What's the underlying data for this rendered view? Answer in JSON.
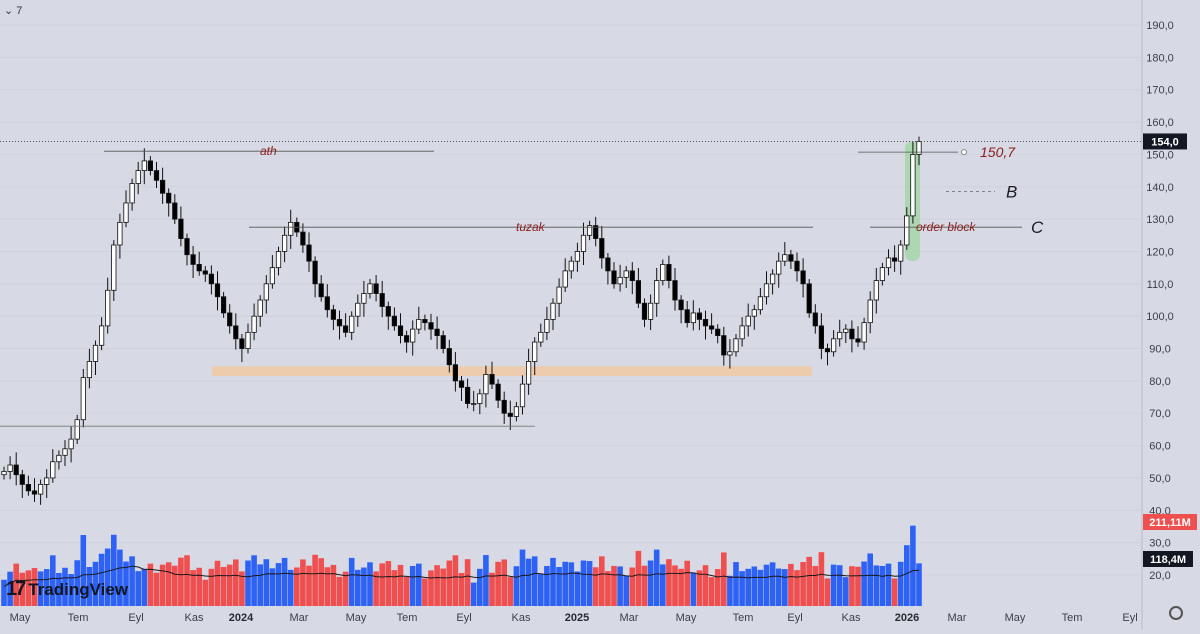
{
  "header": {
    "symbol_hint": "7"
  },
  "branding": {
    "logo_text": "TradingView"
  },
  "colors": {
    "up": "#ffffff",
    "down": "#000000",
    "vol_up": "#2e62f5",
    "vol_down": "#ef4f4f",
    "vol_ma": "#1a1a1a",
    "zone": "#f3c79a",
    "ob_box": "#8fd68f",
    "annotation": "#8b1d1d"
  },
  "chart_data": {
    "type": "candlestick",
    "title": "",
    "price_axis": {
      "ticks": [
        "20,0",
        "30,0",
        "40,0",
        "50,0",
        "60,0",
        "70,0",
        "80,0",
        "90,0",
        "100,0",
        "110,0",
        "120,0",
        "130,0",
        "140,0",
        "150,0",
        "160,0",
        "170,0",
        "180,0",
        "190,0"
      ],
      "range": [
        15,
        195
      ]
    },
    "time_axis": {
      "labels": [
        "May",
        "Tem",
        "Eyl",
        "Kas",
        "2024",
        "Mar",
        "May",
        "Tem",
        "Eyl",
        "Kas",
        "2025",
        "Mar",
        "May",
        "Tem",
        "Eyl",
        "Kas",
        "2026",
        "Mar",
        "May",
        "Tem",
        "Eyl"
      ]
    },
    "last_price": {
      "label": "154,0",
      "value": 154.0
    },
    "volume_labels": {
      "last_volume": "211,11M",
      "volume_ma": "118,4M"
    },
    "annotations": {
      "ath": {
        "text": "ath",
        "level": 151
      },
      "tuzak": {
        "text": "tuzak",
        "level": 127.5
      },
      "target": {
        "text": "150,7",
        "level": 150.7
      },
      "b": {
        "text": "B",
        "level": 138.5
      },
      "c": {
        "text": "C",
        "level": 127.5
      },
      "order_block": {
        "text": "order block",
        "level": 127.5
      },
      "support_zone": {
        "from": 81.5,
        "to": 84.5
      },
      "lower_line": {
        "level": 66
      }
    },
    "candles_close": [
      52,
      54,
      51,
      48,
      46,
      45,
      48,
      50,
      55,
      57,
      59,
      62,
      68,
      81,
      86,
      91,
      97,
      108,
      122,
      129,
      135,
      141,
      145,
      148,
      145,
      142,
      138,
      135,
      130,
      124,
      119,
      116,
      114,
      113,
      110,
      106,
      101,
      97,
      93,
      90,
      95,
      100,
      105,
      110,
      115,
      120,
      125,
      129,
      126,
      122,
      117,
      110,
      106,
      102,
      99,
      97,
      95,
      100,
      104,
      107,
      110,
      107,
      103,
      100,
      97,
      94,
      92,
      96,
      99,
      98,
      96,
      94,
      90,
      85,
      80,
      78,
      73,
      73,
      76,
      82,
      79,
      74,
      70,
      69,
      72,
      79,
      86,
      92,
      95,
      99,
      104,
      109,
      114,
      117,
      120,
      125,
      128,
      124,
      118,
      114,
      110,
      112,
      114,
      111,
      104,
      99,
      104,
      111,
      116,
      111,
      105,
      102,
      98,
      101,
      99,
      97,
      96,
      94,
      88,
      89,
      93,
      97,
      100,
      102,
      106,
      110,
      113,
      117,
      119,
      117,
      114,
      110,
      101,
      97,
      90,
      89,
      93,
      95,
      96,
      93,
      92,
      98,
      105,
      111,
      115,
      118,
      117,
      122,
      131,
      150,
      154
    ]
  }
}
